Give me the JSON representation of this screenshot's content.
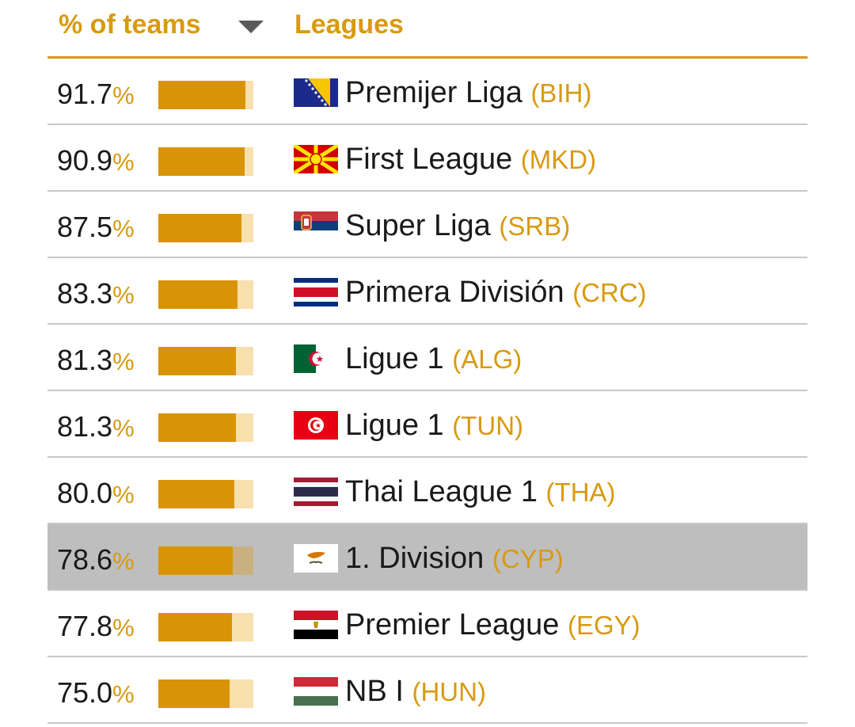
{
  "header": {
    "pct_label": "% of teams",
    "leagues_label": "Leagues",
    "accent_color": "#d89a10",
    "sort_icon": "caret-down-icon"
  },
  "percent_symbol": "%",
  "rows": [
    {
      "pct": "91.7",
      "fraction": 0.917,
      "league": "Premijer Liga",
      "code": "(BIH)",
      "flag": "flag-bih-icon",
      "highlight": false
    },
    {
      "pct": "90.9",
      "fraction": 0.909,
      "league": "First League",
      "code": "(MKD)",
      "flag": "flag-mkd-icon",
      "highlight": false
    },
    {
      "pct": "87.5",
      "fraction": 0.875,
      "league": "Super Liga",
      "code": "(SRB)",
      "flag": "flag-srb-icon",
      "highlight": false
    },
    {
      "pct": "83.3",
      "fraction": 0.833,
      "league": "Primera División",
      "code": "(CRC)",
      "flag": "flag-crc-icon",
      "highlight": false
    },
    {
      "pct": "81.3",
      "fraction": 0.813,
      "league": "Ligue 1",
      "code": "(ALG)",
      "flag": "flag-alg-icon",
      "highlight": false
    },
    {
      "pct": "81.3",
      "fraction": 0.813,
      "league": "Ligue 1",
      "code": "(TUN)",
      "flag": "flag-tun-icon",
      "highlight": false
    },
    {
      "pct": "80.0",
      "fraction": 0.8,
      "league": "Thai League 1",
      "code": "(THA)",
      "flag": "flag-tha-icon",
      "highlight": false
    },
    {
      "pct": "78.6",
      "fraction": 0.786,
      "league": "1. Division",
      "code": "(CYP)",
      "flag": "flag-cyp-icon",
      "highlight": true
    },
    {
      "pct": "77.8",
      "fraction": 0.778,
      "league": "Premier League",
      "code": "(EGY)",
      "flag": "flag-egy-icon",
      "highlight": false
    },
    {
      "pct": "75.0",
      "fraction": 0.75,
      "league": "NB I",
      "code": "(HUN)",
      "flag": "flag-hun-icon",
      "highlight": false
    }
  ]
}
